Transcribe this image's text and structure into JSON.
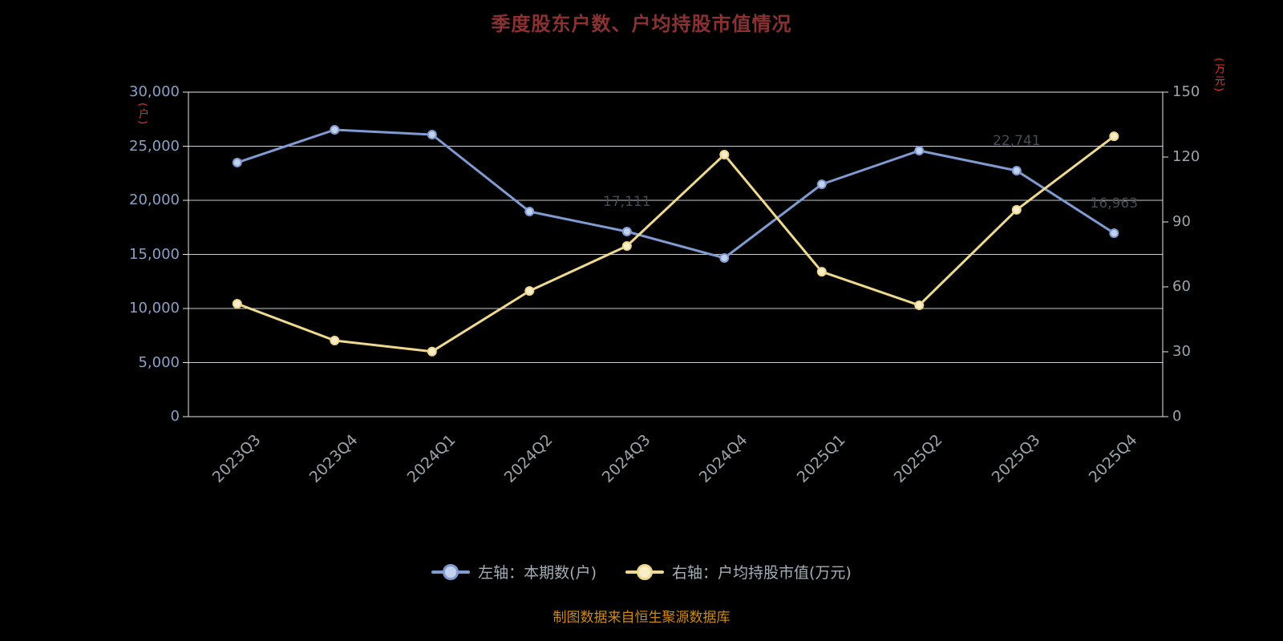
{
  "title": "季度股东户数、户均持股市值情况",
  "footer": "制图数据来自恒生聚源数据库",
  "left_axis": {
    "unit": "(户)",
    "ticks": [
      "30,000",
      "25,000",
      "20,000",
      "15,000",
      "10,000",
      "5,000",
      "0"
    ]
  },
  "right_axis": {
    "unit": "(万元)",
    "ticks": [
      "150",
      "120",
      "90",
      "60",
      "30",
      "0"
    ]
  },
  "legend": [
    {
      "label": "左轴：本期数(户)",
      "color": "#7f9bd1",
      "fill": "#c3d2ec"
    },
    {
      "label": "右轴：户均持股市值(万元)",
      "color": "#efd88f",
      "fill": "#f8eeca"
    }
  ],
  "chart_data": {
    "type": "line",
    "categories": [
      "2023Q3",
      "2023Q4",
      "2024Q1",
      "2024Q2",
      "2024Q3",
      "2024Q4",
      "2025Q1",
      "2025Q2",
      "2025Q3",
      "2025Q4"
    ],
    "series": [
      {
        "name": "左轴：本期数(户)",
        "axis": "left",
        "color": "#7f9bd1",
        "marker_fill": "#c3d2ec",
        "values": [
          23486,
          26519,
          26074,
          18963,
          17111,
          14667,
          21481,
          24593,
          22741,
          16963
        ]
      },
      {
        "name": "右轴：户均持股市值(万元)",
        "axis": "right",
        "color": "#efd88f",
        "marker_fill": "#f8eeca",
        "values": [
          52.2,
          35.2,
          30.1,
          58.1,
          78.9,
          121.1,
          67.0,
          51.5,
          95.6,
          129.6
        ]
      }
    ],
    "left_ylim": [
      0,
      30000
    ],
    "right_ylim": [
      0,
      150
    ],
    "grid": true,
    "legend_position": "bottom",
    "point_labels": [
      {
        "series": 0,
        "index": 4
      },
      {
        "series": 0,
        "index": 8
      },
      {
        "series": 0,
        "index": 9
      }
    ],
    "ylabel_left": "户",
    "ylabel_right": "万元"
  },
  "colors": {
    "background": "#000000",
    "title": "#8a3232",
    "grid": "#c9ced4",
    "axis": "#e6e9ec",
    "left_tick": "#8aa0c6",
    "right_tick": "#9aa4aa",
    "x_tick": "#9aa4aa",
    "unit": "#e8352b",
    "legend_text": "#a3aeb9",
    "footer": "#cc8a12",
    "point_label": "#454c57"
  }
}
